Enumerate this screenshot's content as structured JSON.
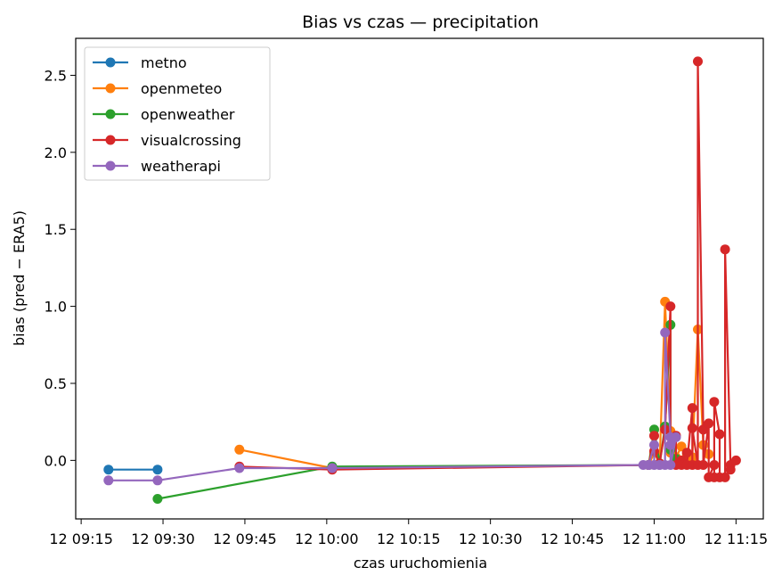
{
  "chart_data": {
    "type": "line",
    "title": "Bias vs czas — precipitation",
    "xlabel": "czas uruchomienia",
    "ylabel": "bias (pred − ERA5)",
    "x_unit": "time (day 12, HH:MM)",
    "xlim": [
      "09:14",
      "11:20"
    ],
    "ylim": [
      -0.38,
      2.74
    ],
    "x_ticks": [
      "09:15",
      "09:30",
      "09:45",
      "10:00",
      "10:15",
      "10:30",
      "10:45",
      "11:00",
      "11:15"
    ],
    "x_tick_labels": [
      "12 09:15",
      "12 09:30",
      "12 09:45",
      "12 10:00",
      "12 10:15",
      "12 10:30",
      "12 10:45",
      "12 11:00",
      "12 11:15"
    ],
    "y_ticks": [
      0.0,
      0.5,
      1.0,
      1.5,
      2.0,
      2.5
    ],
    "y_tick_labels": [
      "0.0",
      "0.5",
      "1.0",
      "1.5",
      "2.0",
      "2.5"
    ],
    "legend_position": "upper-left",
    "grid": false,
    "series": [
      {
        "name": "metno",
        "color": "#1f77b4",
        "x": [
          "09:20",
          "09:29"
        ],
        "y": [
          -0.06,
          -0.06
        ]
      },
      {
        "name": "openmeteo",
        "color": "#ff7f0e",
        "x": [
          "09:44",
          "10:01",
          "10:59",
          "11:00",
          "11:01",
          "11:02",
          "11:03",
          "11:03",
          "11:04",
          "11:05",
          "11:06",
          "11:07",
          "11:08",
          "11:09",
          "11:10"
        ],
        "y": [
          0.07,
          -0.05,
          -0.03,
          0.05,
          -0.02,
          1.03,
          0.19,
          0.05,
          0.02,
          0.09,
          0.04,
          0.02,
          0.85,
          0.1,
          0.04
        ]
      },
      {
        "name": "openweather",
        "color": "#2ca02c",
        "x": [
          "09:29",
          "10:01",
          "10:59",
          "11:00",
          "11:01",
          "11:02",
          "11:03",
          "11:03",
          "11:04"
        ],
        "y": [
          -0.25,
          -0.04,
          -0.03,
          0.2,
          -0.02,
          0.22,
          0.88,
          0.07,
          0.01
        ]
      },
      {
        "name": "visualcrossing",
        "color": "#d62728",
        "x": [
          "09:44",
          "10:01",
          "10:59",
          "11:00",
          "11:00",
          "11:01",
          "11:02",
          "11:03",
          "11:03",
          "11:04",
          "11:04",
          "11:05",
          "11:05",
          "11:06",
          "11:06",
          "11:07",
          "11:07",
          "11:07",
          "11:08",
          "11:08",
          "11:09",
          "11:09",
          "11:10",
          "11:10",
          "11:11",
          "11:11",
          "11:11",
          "11:12",
          "11:12",
          "11:13",
          "11:13",
          "11:14",
          "11:14",
          "11:15"
        ],
        "y": [
          -0.04,
          -0.06,
          -0.03,
          0.16,
          0.06,
          -0.02,
          0.2,
          1.0,
          0.1,
          0.16,
          -0.03,
          0.0,
          -0.03,
          0.05,
          -0.03,
          0.34,
          -0.03,
          0.21,
          -0.03,
          2.59,
          0.2,
          -0.03,
          0.24,
          -0.11,
          -0.03,
          -0.11,
          0.38,
          0.17,
          -0.11,
          -0.11,
          1.37,
          -0.03,
          -0.06,
          0.0
        ]
      },
      {
        "name": "weatherapi",
        "color": "#9467bd",
        "x": [
          "09:20",
          "09:29",
          "09:44",
          "10:01",
          "10:58",
          "10:59",
          "10:59",
          "11:00",
          "11:00",
          "11:01",
          "11:01",
          "11:02",
          "11:02",
          "11:03",
          "11:03",
          "11:03",
          "11:04"
        ],
        "y": [
          -0.13,
          -0.13,
          -0.05,
          -0.05,
          -0.03,
          -0.03,
          -0.03,
          0.1,
          -0.03,
          -0.03,
          -0.03,
          -0.03,
          0.83,
          0.15,
          0.1,
          -0.03,
          0.15
        ]
      }
    ]
  }
}
